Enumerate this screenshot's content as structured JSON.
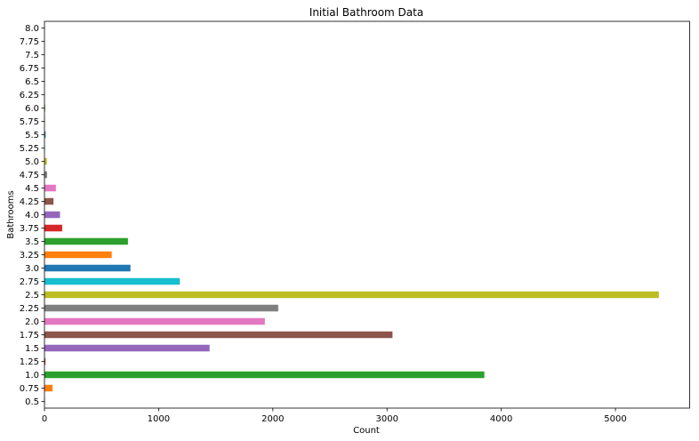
{
  "chart_data": {
    "type": "bar",
    "orientation": "horizontal",
    "title": "Initial Bathroom Data",
    "xlabel": "Count",
    "ylabel": "Bathrooms",
    "xlim": [
      0,
      5650
    ],
    "xticks": [
      0,
      1000,
      2000,
      3000,
      4000,
      5000
    ],
    "grid": false,
    "legend": "none",
    "categories": [
      "0.5",
      "0.75",
      "1.0",
      "1.25",
      "1.5",
      "1.75",
      "2.0",
      "2.25",
      "2.5",
      "2.75",
      "3.0",
      "3.25",
      "3.5",
      "3.75",
      "4.0",
      "4.25",
      "4.5",
      "4.75",
      "5.0",
      "5.25",
      "5.5",
      "5.75",
      "6.0",
      "6.25",
      "6.5",
      "6.75",
      "7.5",
      "7.75",
      "8.0"
    ],
    "values": [
      4,
      71,
      3852,
      9,
      1446,
      3048,
      1930,
      2047,
      5380,
      1185,
      753,
      589,
      731,
      155,
      136,
      79,
      100,
      23,
      21,
      4,
      10,
      4,
      6,
      2,
      2,
      2,
      1,
      1,
      2
    ],
    "colors": [
      "#1f77b4",
      "#ff7f0e",
      "#2ca02c",
      "#d62728",
      "#9467bd",
      "#8c564b",
      "#e377c2",
      "#7f7f7f",
      "#bcbd22",
      "#17becf"
    ]
  }
}
